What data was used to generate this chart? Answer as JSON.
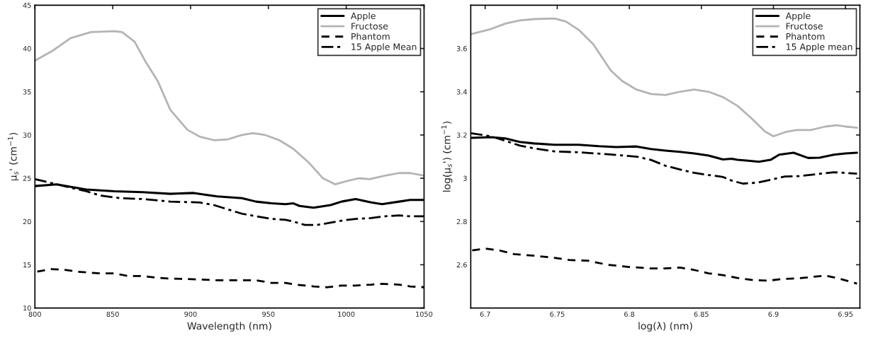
{
  "chart_data": [
    {
      "type": "line",
      "xlabel": "Wavelength (nm)",
      "ylabel": "μ$_{s}$' (cm$^{−1}$)",
      "xlim": [
        800,
        1050
      ],
      "xticks": [
        800,
        850,
        900,
        950,
        1000,
        1050
      ],
      "ylim": [
        10,
        45
      ],
      "yticks": [
        10,
        15,
        20,
        25,
        30,
        35,
        40,
        45
      ],
      "grid": false,
      "legend": "top right",
      "marker": "none",
      "series": [
        {
          "name": "Apple",
          "color": "#000000",
          "line_style": "solid",
          "x": [
            800,
            814,
            823,
            833,
            851,
            869,
            887,
            902,
            909,
            917,
            933,
            942,
            952,
            961,
            966,
            970,
            979,
            990,
            997,
            1006,
            1016,
            1023,
            1034,
            1041,
            1050
          ],
          "values": [
            24.1,
            24.3,
            24.0,
            23.7,
            23.5,
            23.4,
            23.2,
            23.3,
            23.1,
            22.9,
            22.7,
            22.3,
            22.1,
            22.0,
            22.1,
            21.8,
            21.6,
            21.9,
            22.3,
            22.6,
            22.2,
            22.0,
            22.3,
            22.5,
            22.5
          ]
        },
        {
          "name": "Fructose",
          "color": "#b4b4b4",
          "line_style": "solid",
          "x": [
            800,
            811,
            823,
            836,
            851,
            856,
            864,
            871,
            879,
            887,
            898,
            906,
            915,
            924,
            933,
            940,
            948,
            957,
            966,
            976,
            985,
            993,
            1001,
            1008,
            1015,
            1025,
            1034,
            1041,
            1050
          ],
          "values": [
            38.6,
            39.7,
            41.2,
            41.9,
            42.0,
            41.9,
            40.8,
            38.5,
            36.2,
            32.9,
            30.6,
            29.8,
            29.4,
            29.5,
            30.0,
            30.2,
            30.0,
            29.4,
            28.4,
            26.8,
            25.0,
            24.3,
            24.7,
            25.0,
            24.9,
            25.3,
            25.6,
            25.6,
            25.3
          ]
        },
        {
          "name": "Phantom",
          "color": "#000000",
          "line_style": "dashed",
          "x": [
            801.5,
            810.6,
            820,
            827,
            842,
            851,
            860,
            869,
            878,
            887,
            906,
            917,
            933,
            942,
            952,
            961,
            968,
            979,
            988,
            997,
            1006,
            1016,
            1023,
            1034,
            1041,
            1050
          ],
          "values": [
            14.2,
            14.5,
            14.4,
            14.2,
            14.0,
            14.0,
            13.7,
            13.7,
            13.5,
            13.4,
            13.3,
            13.2,
            13.2,
            13.2,
            12.9,
            12.9,
            12.7,
            12.5,
            12.4,
            12.6,
            12.6,
            12.7,
            12.8,
            12.7,
            12.5,
            12.4
          ]
        },
        {
          "name": "15 Apple Mean",
          "color": "#000000",
          "line_style": "dashdot",
          "x": [
            800,
            814,
            823,
            833,
            842,
            855,
            869,
            887,
            906,
            915,
            924,
            933,
            942,
            952,
            961,
            966,
            973.5,
            981,
            988,
            997,
            1006,
            1016,
            1025,
            1034,
            1041,
            1050
          ],
          "values": [
            24.9,
            24.3,
            23.9,
            23.5,
            23.0,
            22.7,
            22.6,
            22.3,
            22.2,
            21.9,
            21.4,
            20.9,
            20.6,
            20.3,
            20.2,
            20.0,
            19.6,
            19.6,
            19.8,
            20.1,
            20.3,
            20.4,
            20.6,
            20.7,
            20.6,
            20.6
          ]
        }
      ]
    },
    {
      "type": "line",
      "xlabel": "log(λ) (nm)",
      "ylabel": "log(μ$_{s}$') (cm$^{−1}$)",
      "xlim": [
        6.69,
        6.96
      ],
      "xticks": [
        6.7,
        6.75,
        6.8,
        6.85,
        6.9,
        6.95
      ],
      "ylim": [
        2.4,
        3.8
      ],
      "yticks": [
        2.6,
        2.8,
        3,
        3.2,
        3.4,
        3.6
      ],
      "grid": false,
      "legend": "top right",
      "marker": "none",
      "series": [
        {
          "name": "Apple",
          "color": "#000000",
          "line_style": "solid",
          "x": [
            6.69,
            6.704,
            6.714,
            6.724,
            6.734,
            6.748,
            6.765,
            6.779,
            6.791,
            6.805,
            6.815,
            6.825,
            6.835,
            6.845,
            6.855,
            6.865,
            6.871,
            6.875,
            6.881,
            6.89,
            6.898,
            6.904,
            6.914,
            6.924,
            6.932,
            6.942,
            6.95,
            6.958
          ],
          "values": [
            3.187,
            3.19,
            3.184,
            3.168,
            3.161,
            3.155,
            3.155,
            3.148,
            3.144,
            3.147,
            3.135,
            3.128,
            3.122,
            3.115,
            3.105,
            3.087,
            3.09,
            3.085,
            3.082,
            3.076,
            3.085,
            3.109,
            3.118,
            3.094,
            3.095,
            3.109,
            3.115,
            3.118
          ]
        },
        {
          "name": "Fructose",
          "color": "#b4b4b4",
          "line_style": "solid",
          "x": [
            6.69,
            6.704,
            6.714,
            6.724,
            6.734,
            6.748,
            6.756,
            6.765,
            6.775,
            6.787,
            6.795,
            6.805,
            6.815,
            6.825,
            6.835,
            6.845,
            6.855,
            6.865,
            6.875,
            6.885,
            6.894,
            6.9,
            6.908,
            6.916,
            6.926,
            6.936,
            6.944,
            6.95,
            6.958
          ],
          "values": [
            3.666,
            3.69,
            3.715,
            3.73,
            3.736,
            3.739,
            3.725,
            3.686,
            3.62,
            3.5,
            3.45,
            3.41,
            3.39,
            3.385,
            3.4,
            3.41,
            3.4,
            3.375,
            3.335,
            3.276,
            3.217,
            3.194,
            3.213,
            3.223,
            3.223,
            3.239,
            3.245,
            3.239,
            3.234
          ]
        },
        {
          "name": "Phantom",
          "color": "#000000",
          "line_style": "dashed",
          "x": [
            6.691,
            6.7,
            6.71,
            6.72,
            6.734,
            6.748,
            6.758,
            6.771,
            6.785,
            6.799,
            6.815,
            6.825,
            6.835,
            6.845,
            6.855,
            6.865,
            6.875,
            6.885,
            6.896,
            6.906,
            6.916,
            6.926,
            6.936,
            6.944,
            6.958
          ],
          "values": [
            2.666,
            2.675,
            2.666,
            2.649,
            2.642,
            2.632,
            2.622,
            2.619,
            2.6,
            2.59,
            2.583,
            2.583,
            2.587,
            2.576,
            2.56,
            2.552,
            2.539,
            2.53,
            2.526,
            2.534,
            2.537,
            2.543,
            2.55,
            2.539,
            2.513
          ]
        },
        {
          "name": "15 Apple mean",
          "color": "#000000",
          "line_style": "dashdot",
          "x": [
            6.69,
            6.704,
            6.714,
            6.724,
            6.734,
            6.748,
            6.765,
            6.785,
            6.805,
            6.815,
            6.825,
            6.835,
            6.845,
            6.855,
            6.865,
            6.871,
            6.879,
            6.889,
            6.9,
            6.908,
            6.918,
            6.93,
            6.942,
            6.958
          ],
          "values": [
            3.208,
            3.194,
            3.173,
            3.151,
            3.138,
            3.124,
            3.12,
            3.111,
            3.1,
            3.085,
            3.058,
            3.041,
            3.025,
            3.015,
            3.006,
            2.989,
            2.975,
            2.98,
            2.996,
            3.008,
            3.01,
            3.019,
            3.028,
            3.021
          ]
        }
      ]
    }
  ]
}
